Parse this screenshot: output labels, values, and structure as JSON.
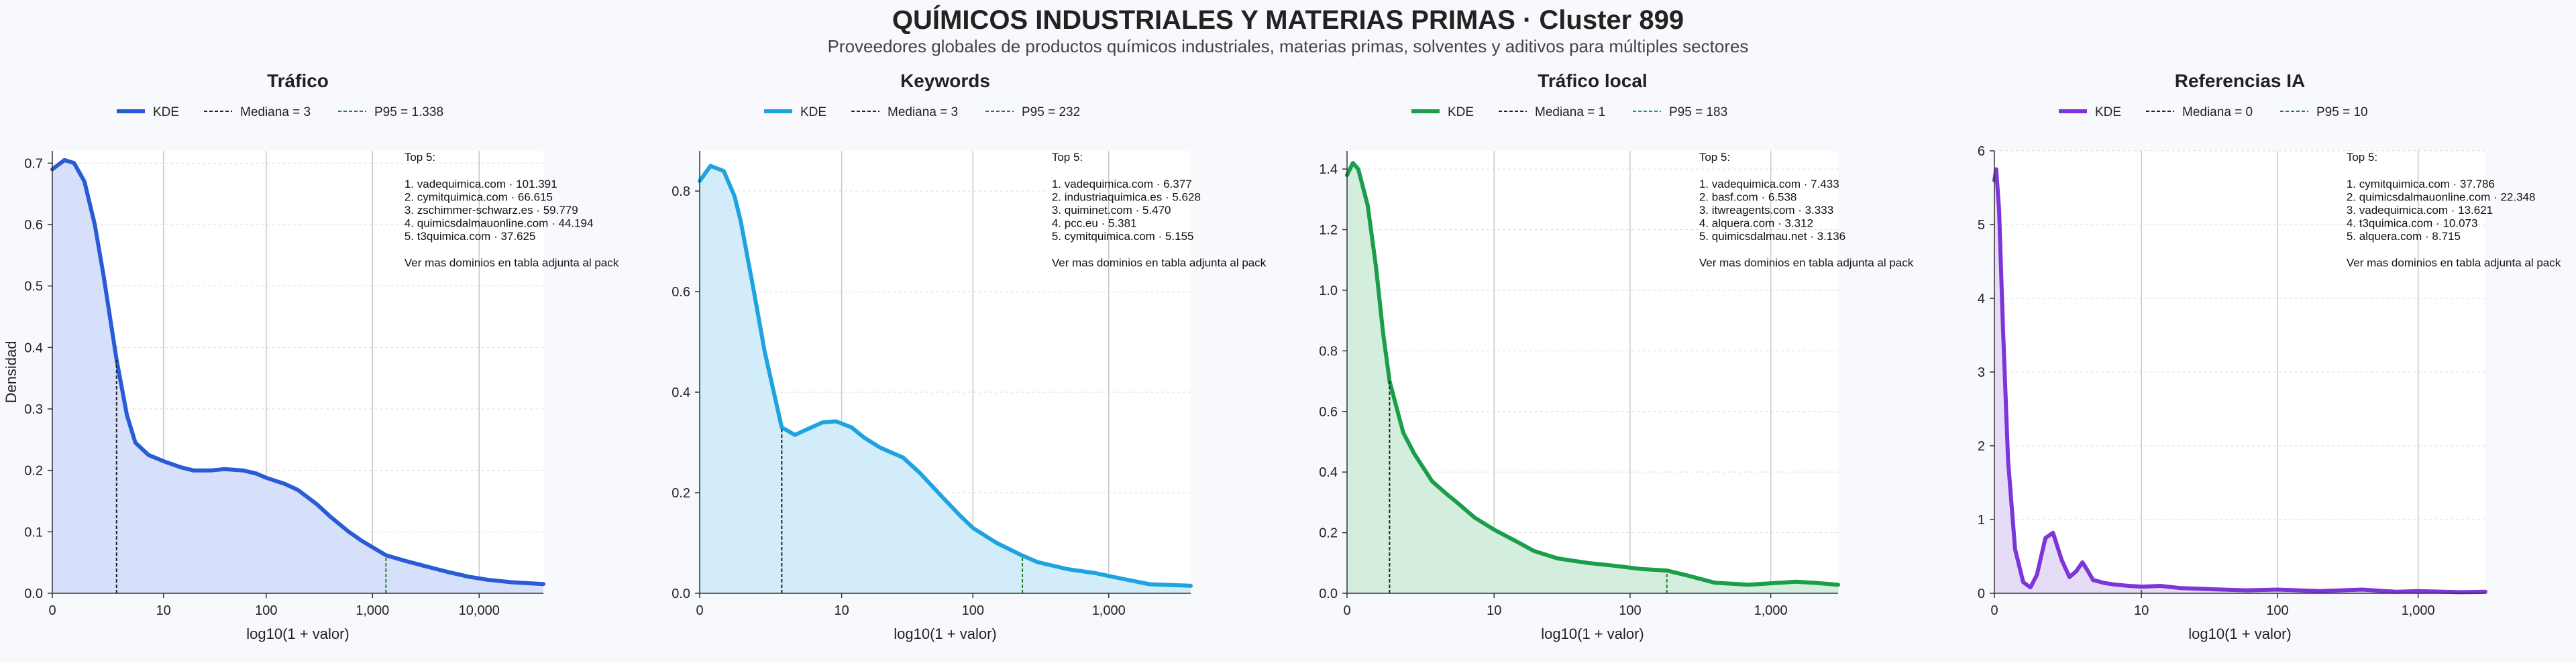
{
  "header": {
    "title": "QUÍMICOS INDUSTRIALES Y MATERIAS PRIMAS · Cluster 899",
    "subtitle": "Proveedores globales de productos químicos industriales, materias primas, solventes y aditivos para múltiples sectores"
  },
  "chart_data": [
    {
      "type": "area",
      "title": "Tráfico",
      "xlabel": "log10(1 + valor)",
      "ylabel": "Densidad",
      "x_scale": "log10(1+x)",
      "xlim": [
        0,
        40000
      ],
      "ylim": [
        0,
        0.72
      ],
      "x_ticks": [
        0,
        10,
        100,
        1000,
        10000
      ],
      "x_tick_labels": [
        "0",
        "10",
        "100",
        "1,000",
        "10,000"
      ],
      "y_ticks": [
        0.0,
        0.1,
        0.2,
        0.3,
        0.4,
        0.5,
        0.6,
        0.7
      ],
      "y_tick_labels": [
        "0.0",
        "0.1",
        "0.2",
        "0.3",
        "0.4",
        "0.5",
        "0.6",
        "0.7"
      ],
      "color": "#2a5bd7",
      "fill_color": "#d6e0fa",
      "legend": {
        "kde": "KDE",
        "median": "Mediana = 3",
        "p95": "P95 = 1.338"
      },
      "median": 3,
      "p95": 1338,
      "series": [
        {
          "name": "KDE",
          "x": [
            0,
            0.3,
            0.6,
            1,
            1.5,
            2,
            3,
            4,
            5,
            7,
            10,
            15,
            20,
            30,
            40,
            60,
            80,
            100,
            150,
            200,
            300,
            400,
            600,
            800,
            1000,
            1338,
            2000,
            3000,
            5000,
            8000,
            12000,
            20000,
            40000
          ],
          "y": [
            0.69,
            0.705,
            0.7,
            0.67,
            0.6,
            0.52,
            0.38,
            0.29,
            0.245,
            0.225,
            0.215,
            0.205,
            0.2,
            0.2,
            0.202,
            0.2,
            0.195,
            0.188,
            0.178,
            0.168,
            0.145,
            0.125,
            0.1,
            0.085,
            0.075,
            0.062,
            0.053,
            0.045,
            0.035,
            0.027,
            0.022,
            0.018,
            0.015
          ]
        }
      ],
      "top5": {
        "header": "Top 5:",
        "items": [
          "1. vadequimica.com · 101.391",
          "2. cymitquimica.com · 66.615",
          "3. zschimmer-schwarz.es · 59.779",
          "4. quimicsdalmauonline.com · 44.194",
          "5. t3quimica.com · 37.625"
        ],
        "footer": "Ver mas dominios en tabla adjunta al pack"
      }
    },
    {
      "type": "area",
      "title": "Keywords",
      "xlabel": "log10(1 + valor)",
      "ylabel": "",
      "x_scale": "log10(1+x)",
      "xlim": [
        0,
        4000
      ],
      "ylim": [
        0,
        0.88
      ],
      "x_ticks": [
        0,
        10,
        100,
        1000
      ],
      "x_tick_labels": [
        "0",
        "10",
        "100",
        "1,000"
      ],
      "y_ticks": [
        0.0,
        0.2,
        0.4,
        0.6,
        0.8
      ],
      "y_tick_labels": [
        "0.0",
        "0.2",
        "0.4",
        "0.6",
        "0.8"
      ],
      "color": "#1ea2e0",
      "fill_color": "#d2ecfa",
      "legend": {
        "kde": "KDE",
        "median": "Mediana = 3",
        "p95": "P95 = 232"
      },
      "median": 3,
      "p95": 232,
      "series": [
        {
          "name": "KDE",
          "x": [
            0,
            0.2,
            0.5,
            0.8,
            1,
            1.5,
            2,
            3,
            4,
            5,
            7,
            9,
            12,
            15,
            20,
            30,
            40,
            60,
            80,
            100,
            150,
            232,
            300,
            500,
            800,
            1200,
            2000,
            4000
          ],
          "y": [
            0.82,
            0.85,
            0.84,
            0.79,
            0.74,
            0.6,
            0.48,
            0.33,
            0.315,
            0.325,
            0.34,
            0.342,
            0.33,
            0.31,
            0.29,
            0.27,
            0.24,
            0.19,
            0.155,
            0.13,
            0.1,
            0.075,
            0.062,
            0.048,
            0.04,
            0.03,
            0.018,
            0.015
          ]
        }
      ],
      "top5": {
        "header": "Top 5:",
        "items": [
          "1. vadequimica.com · 6.377",
          "2. industriaquimica.es · 5.628",
          "3. quiminet.com · 5.470",
          "4. pcc.eu · 5.381",
          "5. cymitquimica.com · 5.155"
        ],
        "footer": "Ver mas dominios en tabla adjunta al pack"
      }
    },
    {
      "type": "area",
      "title": "Tráfico local",
      "xlabel": "log10(1 + valor)",
      "ylabel": "",
      "x_scale": "log10(1+x)",
      "xlim": [
        0,
        3000
      ],
      "ylim": [
        0,
        1.46
      ],
      "x_ticks": [
        0,
        10,
        100,
        1000
      ],
      "x_tick_labels": [
        "0",
        "10",
        "100",
        "1,000"
      ],
      "y_ticks": [
        0.0,
        0.2,
        0.4,
        0.6,
        0.8,
        1.0,
        1.2,
        1.4
      ],
      "y_tick_labels": [
        "0.0",
        "0.2",
        "0.4",
        "0.6",
        "0.8",
        "1.0",
        "1.2",
        "1.4"
      ],
      "color": "#1a9e4a",
      "fill_color": "#d3eedd",
      "legend": {
        "kde": "KDE",
        "median": "Mediana = 1",
        "p95": "P95 = 183"
      },
      "median": 1,
      "p95": 183,
      "series": [
        {
          "name": "KDE",
          "x": [
            0,
            0.1,
            0.2,
            0.4,
            0.6,
            0.8,
            1,
            1.5,
            2,
            3,
            4,
            5,
            7,
            10,
            15,
            20,
            30,
            50,
            80,
            120,
            183,
            250,
            400,
            700,
            1000,
            1500,
            2000,
            3000
          ],
          "y": [
            1.38,
            1.42,
            1.4,
            1.28,
            1.08,
            0.86,
            0.7,
            0.53,
            0.46,
            0.37,
            0.33,
            0.3,
            0.25,
            0.21,
            0.17,
            0.14,
            0.115,
            0.1,
            0.09,
            0.08,
            0.075,
            0.06,
            0.035,
            0.028,
            0.033,
            0.038,
            0.035,
            0.028
          ]
        }
      ],
      "top5": {
        "header": "Top 5:",
        "items": [
          "1. vadequimica.com · 7.433",
          "2. basf.com · 6.538",
          "3. itwreagents.com · 3.333",
          "4. alquera.com · 3.312",
          "5. quimicsdalmau.net · 3.136"
        ],
        "footer": "Ver mas dominios en tabla adjunta al pack"
      }
    },
    {
      "type": "area",
      "title": "Referencias IA",
      "xlabel": "log10(1 + valor)",
      "ylabel": "",
      "x_scale": "log10(1+x)",
      "xlim": [
        0,
        3000
      ],
      "ylim": [
        0,
        6.0
      ],
      "x_ticks": [
        0,
        10,
        100,
        1000
      ],
      "x_tick_labels": [
        "0",
        "10",
        "100",
        "1,000"
      ],
      "y_ticks": [
        0,
        1,
        2,
        3,
        4,
        5,
        6
      ],
      "y_tick_labels": [
        "0",
        "1",
        "2",
        "3",
        "4",
        "5",
        "6"
      ],
      "color": "#7b35d8",
      "fill_color": "#e6dcf7",
      "legend": {
        "kde": "KDE",
        "median": "Mediana = 0",
        "p95": "P95 = 10"
      },
      "median": 0,
      "p95": 10,
      "series": [
        {
          "name": "KDE",
          "x": [
            0,
            0.03,
            0.08,
            0.15,
            0.25,
            0.4,
            0.6,
            0.8,
            1,
            1.3,
            1.6,
            2,
            2.4,
            2.8,
            3.2,
            3.6,
            4,
            5,
            6,
            8,
            10,
            14,
            20,
            40,
            60,
            100,
            200,
            400,
            700,
            1000,
            2000,
            3000
          ],
          "y": [
            5.6,
            5.75,
            5.2,
            3.6,
            1.8,
            0.6,
            0.15,
            0.08,
            0.25,
            0.75,
            0.82,
            0.45,
            0.22,
            0.3,
            0.42,
            0.3,
            0.18,
            0.14,
            0.12,
            0.1,
            0.09,
            0.1,
            0.07,
            0.05,
            0.04,
            0.05,
            0.03,
            0.05,
            0.02,
            0.03,
            0.015,
            0.02
          ]
        }
      ],
      "top5": {
        "header": "Top 5:",
        "items": [
          "1. cymitquimica.com · 37.786",
          "2. quimicsdalmauonline.com · 22.348",
          "3. vadequimica.com · 13.621",
          "4. t3quimica.com · 10.073",
          "5. alquera.com · 8.715"
        ],
        "footer": "Ver mas dominios en tabla adjunta al pack"
      }
    }
  ]
}
